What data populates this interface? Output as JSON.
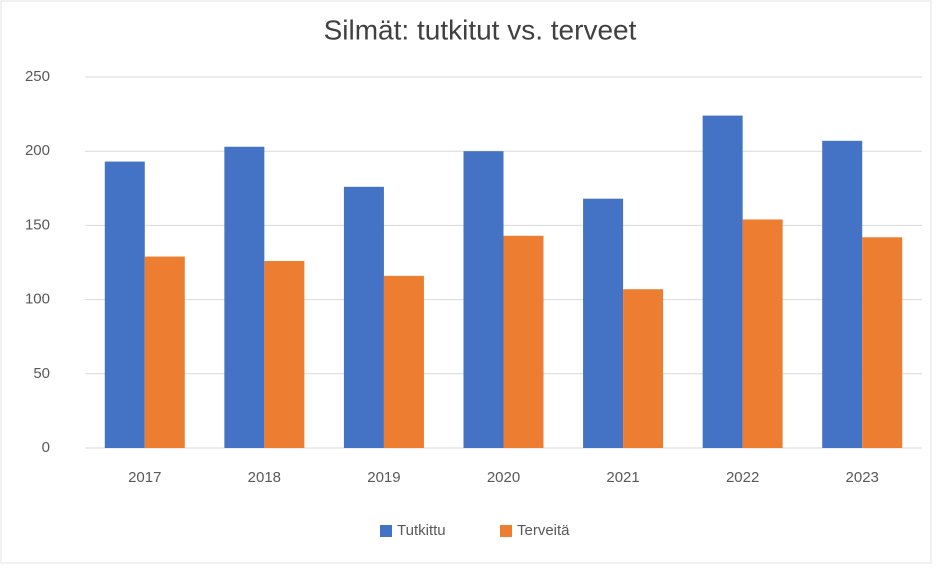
{
  "chart_data": {
    "type": "bar",
    "title": "Silmät: tutkitut vs. terveet",
    "categories": [
      "2017",
      "2018",
      "2019",
      "2020",
      "2021",
      "2022",
      "2023"
    ],
    "series": [
      {
        "name": "Tutkittu",
        "color": "#4472c4",
        "values": [
          193,
          203,
          176,
          200,
          168,
          224,
          207
        ]
      },
      {
        "name": "Terveitä",
        "color": "#ed7d31",
        "values": [
          129,
          126,
          116,
          143,
          107,
          154,
          142
        ]
      }
    ],
    "ylim": [
      0,
      250
    ],
    "yticks": [
      0,
      50,
      100,
      150,
      200,
      250
    ],
    "grid": true,
    "legend": "bottom"
  }
}
